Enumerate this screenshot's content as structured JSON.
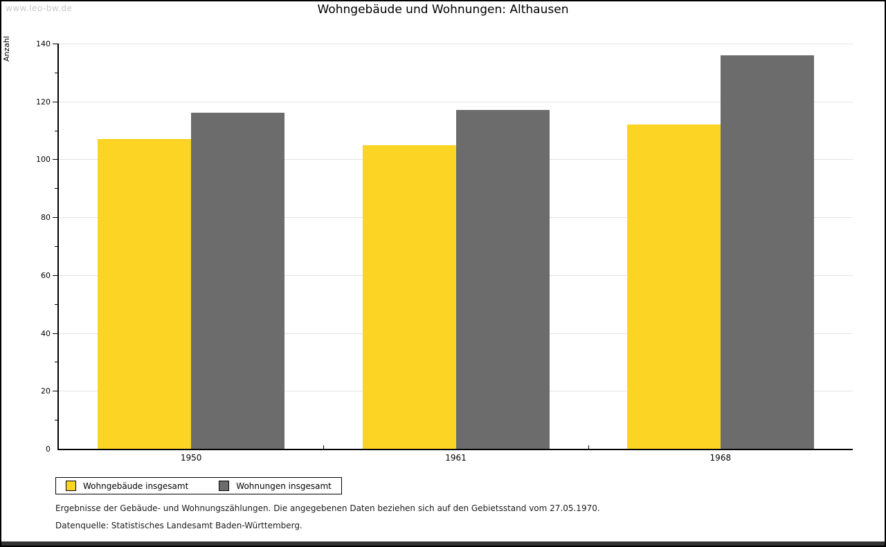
{
  "page": {
    "watermark": "www.leo-bw.de"
  },
  "chart_data": {
    "type": "bar",
    "title": "Wohngebäude und Wohnungen: Althausen",
    "xlabel": "",
    "ylabel": "Anzahl",
    "categories": [
      "1950",
      "1961",
      "1968"
    ],
    "series": [
      {
        "name": "Wohngebäude insgesamt",
        "color": "#FCD423",
        "values": [
          107,
          105,
          112
        ]
      },
      {
        "name": "Wohnungen insgesamt",
        "color": "#6C6C6C",
        "values": [
          116,
          117,
          136
        ]
      }
    ],
    "ylim": [
      0,
      140
    ],
    "ytick_step": 20,
    "yminor_step": 10,
    "grid": "horizontal-major",
    "gridline_color": "#E3E3E3",
    "legend_position": "bottom-left"
  },
  "footer": {
    "note1": "Ergebnisse der Gebäude- und Wohnungszählungen. Die angegebenen Daten beziehen sich auf den Gebietsstand vom 27.05.1970.",
    "note2": "Datenquelle: Statistisches Landesamt Baden-Württemberg."
  }
}
